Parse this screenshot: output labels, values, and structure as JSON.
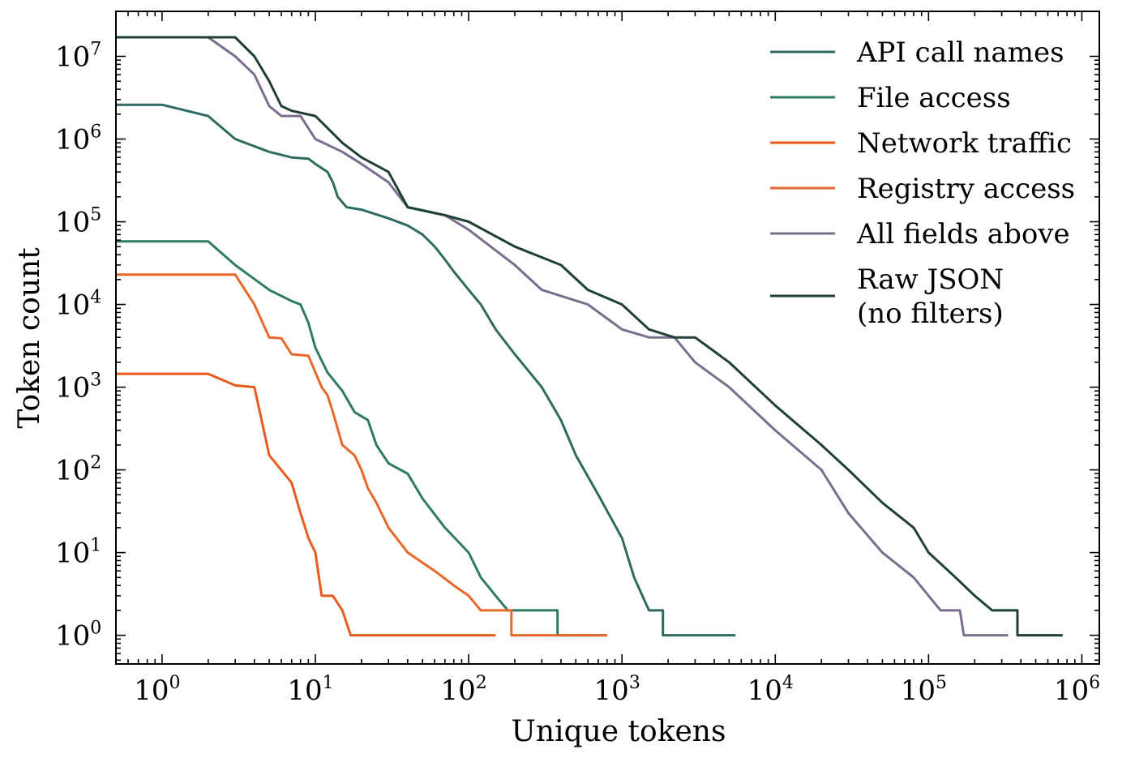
{
  "chart_data": {
    "type": "line",
    "xlabel": "Unique tokens",
    "ylabel": "Token count",
    "x_scale": "log",
    "y_scale": "log",
    "xlim": [
      0.5,
      1300000
    ],
    "ylim": [
      0.45,
      35000000
    ],
    "x_ticks": [
      {
        "base": "10",
        "exp": "0",
        "value": 1
      },
      {
        "base": "10",
        "exp": "1",
        "value": 10
      },
      {
        "base": "10",
        "exp": "2",
        "value": 100
      },
      {
        "base": "10",
        "exp": "3",
        "value": 1000
      },
      {
        "base": "10",
        "exp": "4",
        "value": 10000
      },
      {
        "base": "10",
        "exp": "5",
        "value": 100000
      },
      {
        "base": "10",
        "exp": "6",
        "value": 1000000
      }
    ],
    "y_ticks": [
      {
        "base": "10",
        "exp": "0",
        "value": 1
      },
      {
        "base": "10",
        "exp": "1",
        "value": 10
      },
      {
        "base": "10",
        "exp": "2",
        "value": 100
      },
      {
        "base": "10",
        "exp": "3",
        "value": 1000
      },
      {
        "base": "10",
        "exp": "4",
        "value": 10000
      },
      {
        "base": "10",
        "exp": "5",
        "value": 100000
      },
      {
        "base": "10",
        "exp": "6",
        "value": 1000000
      },
      {
        "base": "10",
        "exp": "7",
        "value": 10000000
      }
    ],
    "legend_position": "top-right",
    "grid": false,
    "series": [
      {
        "name": "API call names",
        "color": "#2f6b60",
        "legend_lines": [
          "API call names"
        ],
        "points": [
          [
            0.5,
            2600000
          ],
          [
            1,
            2600000
          ],
          [
            2,
            1900000
          ],
          [
            3,
            1000000
          ],
          [
            5,
            700000
          ],
          [
            7,
            600000
          ],
          [
            9,
            580000
          ],
          [
            10,
            500000
          ],
          [
            12,
            400000
          ],
          [
            13,
            300000
          ],
          [
            14,
            200000
          ],
          [
            16,
            150000
          ],
          [
            20,
            140000
          ],
          [
            30,
            110000
          ],
          [
            40,
            90000
          ],
          [
            50,
            70000
          ],
          [
            60,
            50000
          ],
          [
            70,
            35000
          ],
          [
            80,
            25000
          ],
          [
            100,
            15000
          ],
          [
            120,
            10000
          ],
          [
            150,
            5000
          ],
          [
            200,
            2500
          ],
          [
            300,
            1000
          ],
          [
            400,
            400
          ],
          [
            500,
            150
          ],
          [
            700,
            50
          ],
          [
            1000,
            15
          ],
          [
            1200,
            5
          ],
          [
            1500,
            2
          ],
          [
            1850,
            2
          ],
          [
            1850,
            1
          ],
          [
            5500,
            1
          ]
        ]
      },
      {
        "name": "File access",
        "color": "#2f7a66",
        "legend_lines": [
          "File access"
        ],
        "points": [
          [
            0.5,
            58000
          ],
          [
            2,
            58000
          ],
          [
            3,
            30000
          ],
          [
            5,
            15000
          ],
          [
            7,
            11000
          ],
          [
            8,
            10000
          ],
          [
            9,
            6000
          ],
          [
            10,
            3000
          ],
          [
            12,
            1500
          ],
          [
            15,
            900
          ],
          [
            18,
            500
          ],
          [
            22,
            400
          ],
          [
            25,
            200
          ],
          [
            30,
            120
          ],
          [
            40,
            90
          ],
          [
            50,
            45
          ],
          [
            70,
            20
          ],
          [
            100,
            10
          ],
          [
            120,
            5
          ],
          [
            150,
            3
          ],
          [
            180,
            2
          ],
          [
            380,
            2
          ],
          [
            380,
            1
          ],
          [
            800,
            1
          ]
        ]
      },
      {
        "name": "Network traffic",
        "color": "#e65c1e",
        "legend_lines": [
          "Network traffic"
        ],
        "points": [
          [
            0.5,
            1450
          ],
          [
            2,
            1450
          ],
          [
            3,
            1050
          ],
          [
            4,
            1000
          ],
          [
            5,
            150
          ],
          [
            7,
            70
          ],
          [
            8,
            30
          ],
          [
            9,
            15
          ],
          [
            10,
            10
          ],
          [
            11,
            3
          ],
          [
            13,
            3
          ],
          [
            15,
            2
          ],
          [
            17,
            1
          ],
          [
            150,
            1
          ]
        ]
      },
      {
        "name": "Registry access",
        "color": "#e8672a",
        "legend_lines": [
          "Registry access"
        ],
        "points": [
          [
            0.5,
            23000
          ],
          [
            3,
            23000
          ],
          [
            4,
            10000
          ],
          [
            5,
            4000
          ],
          [
            6,
            3900
          ],
          [
            7,
            2500
          ],
          [
            9,
            2400
          ],
          [
            11,
            1000
          ],
          [
            12,
            800
          ],
          [
            13,
            500
          ],
          [
            15,
            200
          ],
          [
            18,
            150
          ],
          [
            20,
            100
          ],
          [
            22,
            60
          ],
          [
            25,
            40
          ],
          [
            30,
            20
          ],
          [
            40,
            10
          ],
          [
            60,
            6
          ],
          [
            80,
            4
          ],
          [
            100,
            3
          ],
          [
            120,
            2
          ],
          [
            150,
            2
          ],
          [
            190,
            2
          ],
          [
            190,
            1
          ],
          [
            800,
            1
          ]
        ]
      },
      {
        "name": "All fields above",
        "color": "#7a6e8c",
        "legend_lines": [
          "All fields above"
        ],
        "points": [
          [
            0.5,
            17000000
          ],
          [
            2,
            17000000
          ],
          [
            3,
            10000000
          ],
          [
            4,
            6000000
          ],
          [
            5,
            2500000
          ],
          [
            6,
            1900000
          ],
          [
            8,
            1900000
          ],
          [
            10,
            1000000
          ],
          [
            15,
            700000
          ],
          [
            20,
            500000
          ],
          [
            30,
            300000
          ],
          [
            40,
            150000
          ],
          [
            70,
            120000
          ],
          [
            100,
            80000
          ],
          [
            200,
            30000
          ],
          [
            300,
            15000
          ],
          [
            600,
            10000
          ],
          [
            1000,
            5000
          ],
          [
            1500,
            4000
          ],
          [
            2200,
            4000
          ],
          [
            3000,
            2000
          ],
          [
            5000,
            1000
          ],
          [
            10000,
            300
          ],
          [
            20000,
            100
          ],
          [
            30000,
            30
          ],
          [
            50000,
            10
          ],
          [
            80000,
            5
          ],
          [
            100000,
            3
          ],
          [
            120000,
            2
          ],
          [
            160000,
            2
          ],
          [
            170000,
            1
          ],
          [
            330000,
            1
          ]
        ]
      },
      {
        "name": "Raw JSON",
        "color": "#1f3f38",
        "legend_lines": [
          "Raw JSON",
          "(no filters)"
        ],
        "points": [
          [
            0.5,
            17000000
          ],
          [
            3,
            17000000
          ],
          [
            4,
            10000000
          ],
          [
            5,
            5000000
          ],
          [
            6,
            2500000
          ],
          [
            7,
            2200000
          ],
          [
            10,
            1900000
          ],
          [
            15,
            900000
          ],
          [
            20,
            600000
          ],
          [
            30,
            400000
          ],
          [
            40,
            150000
          ],
          [
            70,
            120000
          ],
          [
            100,
            100000
          ],
          [
            200,
            50000
          ],
          [
            400,
            30000
          ],
          [
            600,
            15000
          ],
          [
            1000,
            10000
          ],
          [
            1500,
            5000
          ],
          [
            2200,
            4000
          ],
          [
            3000,
            4000
          ],
          [
            5000,
            2000
          ],
          [
            10000,
            600
          ],
          [
            20000,
            200
          ],
          [
            30000,
            100
          ],
          [
            50000,
            40
          ],
          [
            80000,
            20
          ],
          [
            100000,
            10
          ],
          [
            150000,
            5
          ],
          [
            200000,
            3
          ],
          [
            260000,
            2
          ],
          [
            380000,
            2
          ],
          [
            380000,
            1
          ],
          [
            750000,
            1
          ]
        ]
      }
    ]
  }
}
